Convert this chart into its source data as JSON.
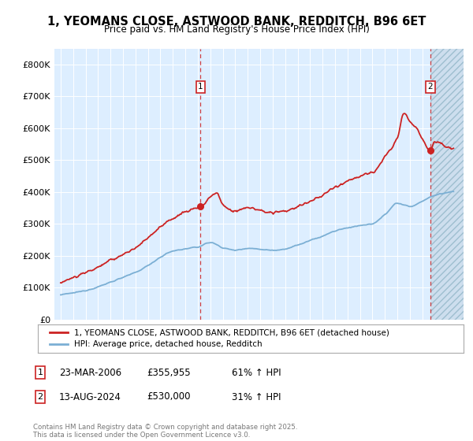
{
  "title": "1, YEOMANS CLOSE, ASTWOOD BANK, REDDITCH, B96 6ET",
  "subtitle": "Price paid vs. HM Land Registry's House Price Index (HPI)",
  "ylim": [
    0,
    850000
  ],
  "yticks": [
    0,
    100000,
    200000,
    300000,
    400000,
    500000,
    600000,
    700000,
    800000
  ],
  "ytick_labels": [
    "£0",
    "£100K",
    "£200K",
    "£300K",
    "£400K",
    "£500K",
    "£600K",
    "£700K",
    "£800K"
  ],
  "hpi_color": "#7bafd4",
  "price_color": "#cc2222",
  "background_color": "#ddeeff",
  "hatch_fill_color": "#ccdded",
  "sale1_date": 2006.22,
  "sale1_price": 355955,
  "sale2_date": 2024.62,
  "sale2_price": 530000,
  "legend_price_label": "1, YEOMANS CLOSE, ASTWOOD BANK, REDDITCH, B96 6ET (detached house)",
  "legend_hpi_label": "HPI: Average price, detached house, Redditch",
  "footnote": "Contains HM Land Registry data © Crown copyright and database right 2025.\nThis data is licensed under the Open Government Licence v3.0.",
  "table_rows": [
    {
      "num": "1",
      "date": "23-MAR-2006",
      "price": "£355,955",
      "change": "61% ↑ HPI"
    },
    {
      "num": "2",
      "date": "13-AUG-2024",
      "price": "£530,000",
      "change": "31% ↑ HPI"
    }
  ]
}
